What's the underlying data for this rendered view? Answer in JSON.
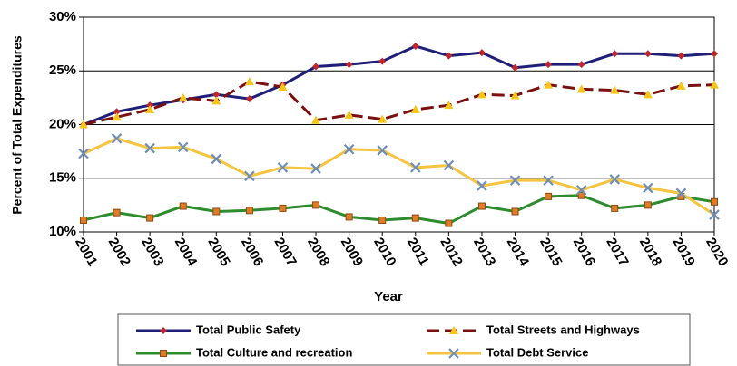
{
  "chart_data": {
    "type": "line",
    "xlabel": "Year",
    "ylabel": "Percent of Total Expenditures",
    "categories": [
      "2001",
      "2002",
      "2003",
      "2004",
      "2005",
      "2006",
      "2007",
      "2008",
      "2009",
      "2010",
      "2011",
      "2012",
      "2013",
      "2014",
      "2015",
      "2016",
      "2017",
      "2018",
      "2019",
      "2020"
    ],
    "series": [
      {
        "name": "Total Public Safety",
        "color": "#1f1f7a",
        "marker_color": "#c0272d",
        "marker": "diamond",
        "dash": false,
        "values": [
          20.0,
          21.2,
          21.8,
          22.3,
          22.8,
          22.4,
          23.7,
          25.4,
          25.6,
          25.9,
          27.3,
          26.4,
          26.7,
          25.3,
          25.6,
          25.6,
          26.6,
          26.6,
          26.4,
          26.6
        ]
      },
      {
        "name": "Total Streets and Highways",
        "color": "#7b1010",
        "marker_color": "#f5c518",
        "marker": "triangle",
        "dash": true,
        "values": [
          20.0,
          20.7,
          21.4,
          22.5,
          22.2,
          24.0,
          23.5,
          20.4,
          20.9,
          20.5,
          21.4,
          21.8,
          22.8,
          22.7,
          23.7,
          23.3,
          23.2,
          22.8,
          23.6,
          23.7
        ]
      },
      {
        "name": "Total Culture and recreation",
        "color": "#2e8b2e",
        "marker_color": "#e07b28",
        "marker": "square",
        "dash": false,
        "values": [
          11.1,
          11.8,
          11.3,
          12.4,
          11.9,
          12.0,
          12.2,
          12.5,
          11.4,
          11.1,
          11.3,
          10.8,
          12.4,
          11.9,
          13.3,
          13.4,
          12.2,
          12.5,
          13.3,
          12.8
        ]
      },
      {
        "name": "Total Debt Service",
        "color": "#f5c542",
        "marker_color": "#6f8db9",
        "marker": "x",
        "dash": false,
        "values": [
          17.3,
          18.7,
          17.8,
          17.9,
          16.8,
          15.2,
          16.0,
          15.9,
          17.7,
          17.6,
          16.0,
          16.2,
          14.3,
          14.8,
          14.8,
          13.9,
          14.9,
          14.1,
          13.6,
          11.6
        ]
      }
    ],
    "ylim": [
      10,
      30
    ],
    "yticks": [
      {
        "value": 10,
        "label": "10%"
      },
      {
        "value": 15,
        "label": "15%"
      },
      {
        "value": 20,
        "label": "20%"
      },
      {
        "value": 25,
        "label": "25%"
      },
      {
        "value": 30,
        "label": "30%"
      }
    ],
    "grid": true,
    "legend": "bottom"
  }
}
